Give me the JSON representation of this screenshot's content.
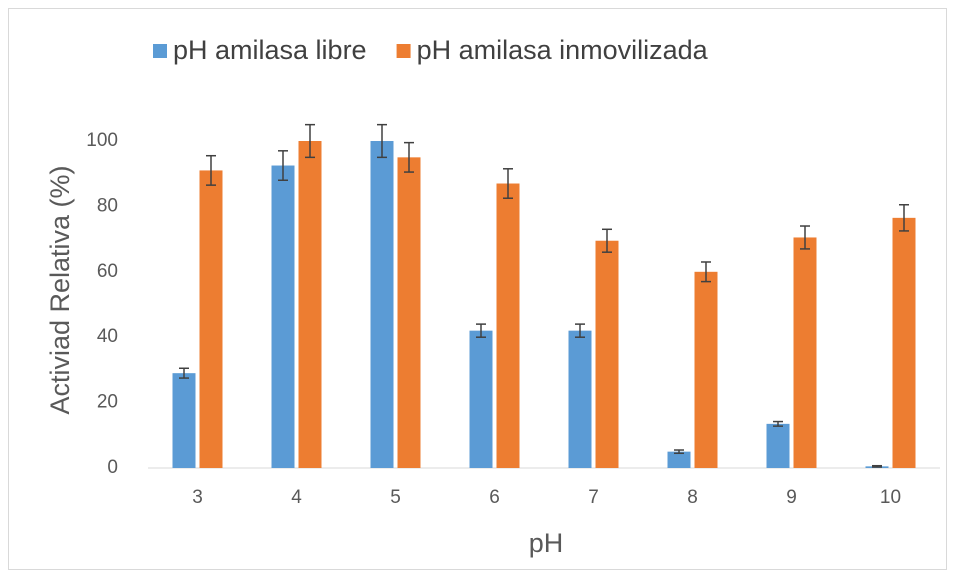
{
  "chart_data": {
    "type": "bar",
    "xlabel": "pH",
    "ylabel": "Activiad Relativa (%)",
    "categories": [
      "3",
      "4",
      "5",
      "6",
      "7",
      "8",
      "9",
      "10"
    ],
    "series": [
      {
        "name": "pH amilasa libre",
        "color": "#5b9bd5",
        "values": [
          29,
          92.5,
          100,
          42,
          42,
          5,
          13.5,
          0.5
        ],
        "errors": [
          1.5,
          4.5,
          5,
          2,
          2,
          0.5,
          0.7,
          0.2
        ]
      },
      {
        "name": "pH amilasa inmovilizada",
        "color": "#ed7d31",
        "values": [
          91,
          100,
          95,
          87,
          69.5,
          60,
          70.5,
          76.5
        ],
        "errors": [
          4.5,
          5,
          4.5,
          4.5,
          3.5,
          3,
          3.5,
          4
        ]
      }
    ],
    "ylim": [
      0,
      100
    ],
    "yticks": [
      0,
      20,
      40,
      60,
      80,
      100
    ],
    "grid": false,
    "legend": "top",
    "error_color": "#404040"
  }
}
